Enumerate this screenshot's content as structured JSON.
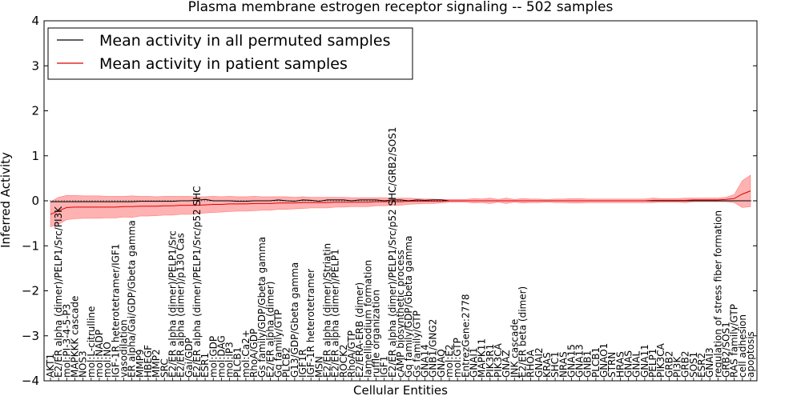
{
  "chart_data": {
    "type": "line",
    "title": "Plasma membrane estrogen receptor signaling -- 502 samples",
    "xlabel": "Cellular Entities",
    "ylabel": "Inferred Activity",
    "ylim": [
      -4,
      4
    ],
    "yticks": [
      "−4",
      "−3",
      "−2",
      "−1",
      "0",
      "1",
      "2",
      "3",
      "4"
    ],
    "yticks_values": [
      -4,
      -3,
      -2,
      -1,
      0,
      1,
      2,
      3,
      4
    ],
    "grid": false,
    "legend_position": "top-left",
    "reference_line_y": 0,
    "categories": [
      "AKT1",
      "E2/ER alpha (dimer)/PELP1/Src/PI3K",
      "mol:PI-3-4-5-P3",
      "MAPKKK cascade",
      "NOS3",
      "mol:L-citrulline",
      "mol:NADP",
      "mol:NO",
      "IGF-1R heterotetramer/IGF1",
      "vasodilation",
      "ER alpha/Gai/GDP/Gbeta gamma",
      "MMP9",
      "HBEGF",
      "MMP2",
      "SRC",
      "E2/ER alpha (dimer)/PELP1/Src",
      "E2/ER alpha (dimer)/p130 Cas",
      "Gai/GDP",
      "E2/ER alpha (dimer)/PELP1/Src/p52 SHC",
      "ESR1",
      "mol:GDP",
      "mol:DAG",
      "mol:IP3",
      "PLCB1",
      "mol:Ca2+",
      "RhoA/GDP",
      "Gs family/GDP/Gbeta gamma",
      "E2/ER alpha (dimer)",
      "Gq family/GTP",
      "PLCB2",
      "G13/GDP/Gbeta gamma",
      "IGF1R",
      "IGF-1R heterotetramer",
      "MSN",
      "E2/ER alpha (dimer)/Striatin",
      "E2/ER alpha (dimer)/PELP1",
      "ROCK2",
      "RhoA/GTP",
      "E2/ERA-ERB (dimer)",
      "lamellipodium formation",
      "ruffle organization",
      "IGF1",
      "E2/ER alpha (dimer)/PELP1/Src/p52 SHC/GRB2/SOS1",
      "cAMP biosynthetic process",
      "Gq family/GDP/Gbeta gamma",
      "Gs family/GTP",
      "GNA14",
      "GNB1/GNG2",
      "GNAQ",
      "mol:E2",
      "mol:GTP",
      "EntrezGene:2778",
      "GNAI1",
      "MAPK11",
      "PIK3R1",
      "PIK3CA",
      "GNAZ",
      "JNK cascade",
      "E2/ER beta (dimer)",
      "RHOA",
      "GNAI2",
      "KRAS",
      "SHC1",
      "NRAS",
      "GNA15",
      "GNA13",
      "GNB1",
      "PLCB1",
      "GNAO1",
      "STRN",
      "HRAS",
      "GNAS",
      "GNAL",
      "GNA11",
      "PELP1",
      "PIK3CA",
      "GRB2",
      "PI3K",
      "GRB2",
      "SOS1",
      "ESR2",
      "GNAI3",
      "regulation of stress fiber formation",
      "GRB2/SOS1",
      "RAS family/GTP",
      "cell adhesion",
      "apoptosis"
    ],
    "series": [
      {
        "name": "Mean activity in all permuted samples",
        "color": "#000000",
        "values": [
          -0.02,
          -0.02,
          -0.02,
          -0.02,
          -0.02,
          -0.02,
          -0.02,
          -0.02,
          -0.02,
          -0.02,
          -0.02,
          -0.01,
          -0.01,
          -0.01,
          -0.01,
          -0.01,
          0.0,
          0.0,
          0.01,
          0.03,
          0.0,
          0.0,
          0.0,
          -0.01,
          -0.01,
          0.0,
          0.0,
          0.0,
          0.02,
          0.0,
          -0.01,
          0.02,
          0.01,
          -0.01,
          0.02,
          0.02,
          0.02,
          0.0,
          0.02,
          0.02,
          0.02,
          0.0,
          0.02,
          0.02,
          0.0,
          0.02,
          0.01,
          0.02,
          0.02,
          0.0,
          0.0,
          0.0,
          0.0,
          0.0,
          0.0,
          0.0,
          0.0,
          0.0,
          0.0,
          0.0,
          0.0,
          0.0,
          0.0,
          0.0,
          0.0,
          0.0,
          0.0,
          0.0,
          0.0,
          0.0,
          0.0,
          0.0,
          0.0,
          0.0,
          0.0,
          0.0,
          0.0,
          0.0,
          0.0,
          0.0,
          0.0,
          0.0,
          0.0,
          0.0,
          0.0,
          0.0,
          0.0
        ]
      },
      {
        "name": "Mean activity in patient samples",
        "color": "#dd0000",
        "values": [
          -0.3,
          -0.22,
          -0.15,
          -0.14,
          -0.14,
          -0.14,
          -0.14,
          -0.14,
          -0.14,
          -0.13,
          -0.13,
          -0.12,
          -0.12,
          -0.12,
          -0.11,
          -0.11,
          -0.1,
          -0.1,
          -0.1,
          -0.09,
          -0.08,
          -0.08,
          -0.07,
          -0.07,
          -0.07,
          -0.06,
          -0.06,
          -0.06,
          -0.05,
          -0.05,
          -0.05,
          -0.04,
          -0.04,
          -0.04,
          -0.04,
          -0.03,
          -0.03,
          -0.03,
          -0.03,
          -0.03,
          -0.02,
          -0.02,
          -0.02,
          -0.02,
          -0.01,
          -0.01,
          -0.01,
          -0.01,
          -0.01,
          0.0,
          0.0,
          0.0,
          0.0,
          0.0,
          0.0,
          0.0,
          0.0,
          0.0,
          0.0,
          0.0,
          0.0,
          0.0,
          0.0,
          0.0,
          0.0,
          0.0,
          0.0,
          0.0,
          0.0,
          0.0,
          0.0,
          0.0,
          0.0,
          0.0,
          0.01,
          0.01,
          0.01,
          0.01,
          0.01,
          0.02,
          0.02,
          0.02,
          0.02,
          0.03,
          0.05,
          0.15,
          0.22
        ],
        "band_halfwidth": [
          0.28,
          0.3,
          0.27,
          0.26,
          0.25,
          0.25,
          0.25,
          0.24,
          0.24,
          0.23,
          0.24,
          0.22,
          0.22,
          0.21,
          0.21,
          0.21,
          0.2,
          0.2,
          0.19,
          0.18,
          0.18,
          0.17,
          0.17,
          0.16,
          0.16,
          0.16,
          0.15,
          0.15,
          0.14,
          0.14,
          0.13,
          0.13,
          0.12,
          0.12,
          0.12,
          0.11,
          0.11,
          0.1,
          0.1,
          0.1,
          0.09,
          0.09,
          0.08,
          0.08,
          0.07,
          0.06,
          0.05,
          0.05,
          0.04,
          0.03,
          0.03,
          0.03,
          0.05,
          0.04,
          0.06,
          0.03,
          0.06,
          0.03,
          0.05,
          0.04,
          0.04,
          0.03,
          0.04,
          0.04,
          0.05,
          0.05,
          0.04,
          0.04,
          0.04,
          0.04,
          0.04,
          0.04,
          0.04,
          0.04,
          0.05,
          0.04,
          0.04,
          0.04,
          0.05,
          0.04,
          0.04,
          0.04,
          0.04,
          0.05,
          0.09,
          0.3,
          0.35
        ]
      }
    ]
  }
}
